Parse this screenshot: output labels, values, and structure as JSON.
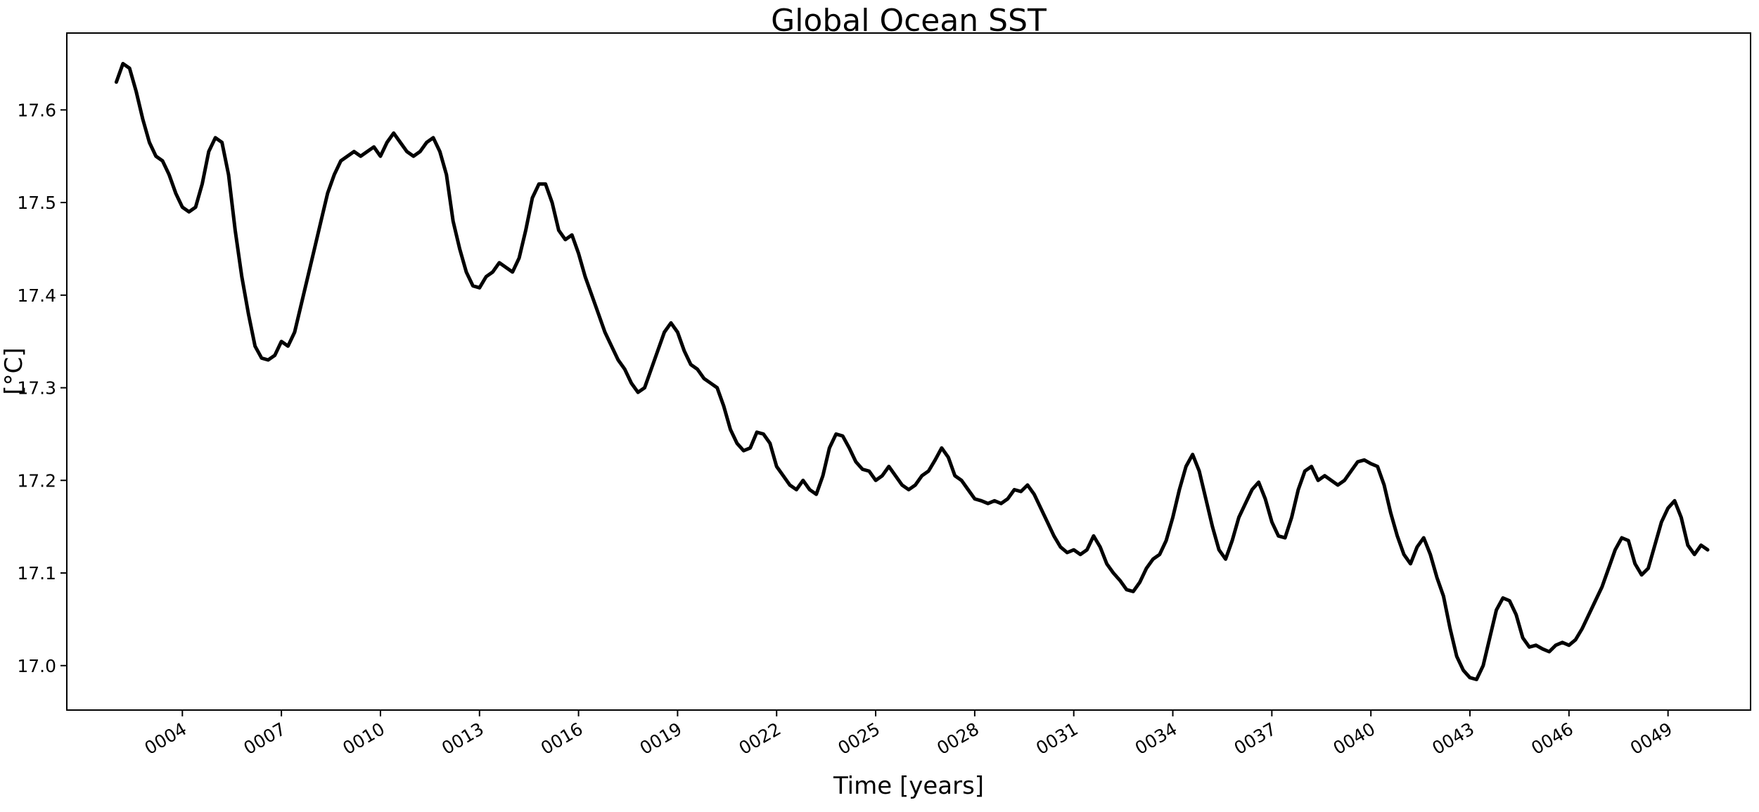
{
  "chart_data": {
    "type": "line",
    "title": "Global Ocean SST",
    "xlabel": "Time [years]",
    "ylabel": "[°C]",
    "grid": false,
    "legend": "none",
    "line_color": "#000000",
    "line_width": 5,
    "axes_color": "#000000",
    "background_color": "#ffffff",
    "tick_font_size": 25,
    "xlim": [
      0.5,
      51.5
    ],
    "ylim": [
      16.952,
      17.683
    ],
    "x_ticks": {
      "values": [
        4,
        7,
        10,
        13,
        16,
        19,
        22,
        25,
        28,
        31,
        34,
        37,
        40,
        43,
        46,
        49
      ],
      "labels": [
        "0004",
        "0007",
        "0010",
        "0013",
        "0016",
        "0019",
        "0022",
        "0025",
        "0028",
        "0031",
        "0034",
        "0037",
        "0040",
        "0043",
        "0046",
        "0049"
      ],
      "rotation_deg": -30
    },
    "y_ticks": {
      "values": [
        17.0,
        17.1,
        17.2,
        17.3,
        17.4,
        17.5,
        17.6
      ],
      "labels": [
        "17.0",
        "17.1",
        "17.2",
        "17.3",
        "17.4",
        "17.5",
        "17.6"
      ]
    },
    "series": [
      {
        "name": "Global Ocean SST",
        "x_start": 2.0,
        "x_step": 0.2,
        "values": [
          17.63,
          17.65,
          17.645,
          17.62,
          17.59,
          17.565,
          17.55,
          17.545,
          17.53,
          17.51,
          17.495,
          17.49,
          17.495,
          17.52,
          17.555,
          17.57,
          17.565,
          17.53,
          17.47,
          17.42,
          17.38,
          17.345,
          17.332,
          17.33,
          17.335,
          17.35,
          17.345,
          17.36,
          17.39,
          17.42,
          17.45,
          17.48,
          17.51,
          17.53,
          17.545,
          17.55,
          17.555,
          17.55,
          17.555,
          17.56,
          17.55,
          17.565,
          17.575,
          17.565,
          17.555,
          17.55,
          17.555,
          17.565,
          17.57,
          17.555,
          17.53,
          17.48,
          17.45,
          17.425,
          17.41,
          17.408,
          17.42,
          17.425,
          17.435,
          17.43,
          17.425,
          17.44,
          17.47,
          17.505,
          17.52,
          17.52,
          17.5,
          17.47,
          17.46,
          17.465,
          17.445,
          17.42,
          17.4,
          17.38,
          17.36,
          17.345,
          17.33,
          17.32,
          17.305,
          17.295,
          17.3,
          17.32,
          17.34,
          17.36,
          17.37,
          17.36,
          17.34,
          17.325,
          17.32,
          17.31,
          17.305,
          17.3,
          17.28,
          17.255,
          17.24,
          17.232,
          17.235,
          17.252,
          17.25,
          17.24,
          17.215,
          17.205,
          17.195,
          17.19,
          17.2,
          17.19,
          17.185,
          17.205,
          17.235,
          17.25,
          17.248,
          17.235,
          17.22,
          17.212,
          17.21,
          17.2,
          17.205,
          17.215,
          17.205,
          17.195,
          17.19,
          17.195,
          17.205,
          17.21,
          17.222,
          17.235,
          17.225,
          17.205,
          17.2,
          17.19,
          17.18,
          17.178,
          17.175,
          17.178,
          17.175,
          17.18,
          17.19,
          17.188,
          17.195,
          17.185,
          17.17,
          17.155,
          17.14,
          17.128,
          17.122,
          17.125,
          17.12,
          17.125,
          17.14,
          17.128,
          17.11,
          17.1,
          17.092,
          17.082,
          17.08,
          17.09,
          17.105,
          17.115,
          17.12,
          17.135,
          17.16,
          17.19,
          17.215,
          17.228,
          17.21,
          17.18,
          17.15,
          17.125,
          17.115,
          17.135,
          17.16,
          17.175,
          17.19,
          17.198,
          17.18,
          17.155,
          17.14,
          17.138,
          17.16,
          17.19,
          17.21,
          17.215,
          17.2,
          17.205,
          17.2,
          17.195,
          17.2,
          17.21,
          17.22,
          17.222,
          17.218,
          17.215,
          17.195,
          17.165,
          17.14,
          17.12,
          17.11,
          17.128,
          17.138,
          17.12,
          17.095,
          17.075,
          17.04,
          17.01,
          16.995,
          16.987,
          16.985,
          17.0,
          17.03,
          17.06,
          17.073,
          17.07,
          17.055,
          17.03,
          17.02,
          17.022,
          17.018,
          17.015,
          17.022,
          17.025,
          17.022,
          17.028,
          17.04,
          17.055,
          17.07,
          17.085,
          17.105,
          17.125,
          17.138,
          17.135,
          17.11,
          17.098,
          17.105,
          17.13,
          17.155,
          17.17,
          17.178,
          17.16,
          17.13,
          17.12,
          17.13,
          17.125
        ]
      }
    ]
  }
}
